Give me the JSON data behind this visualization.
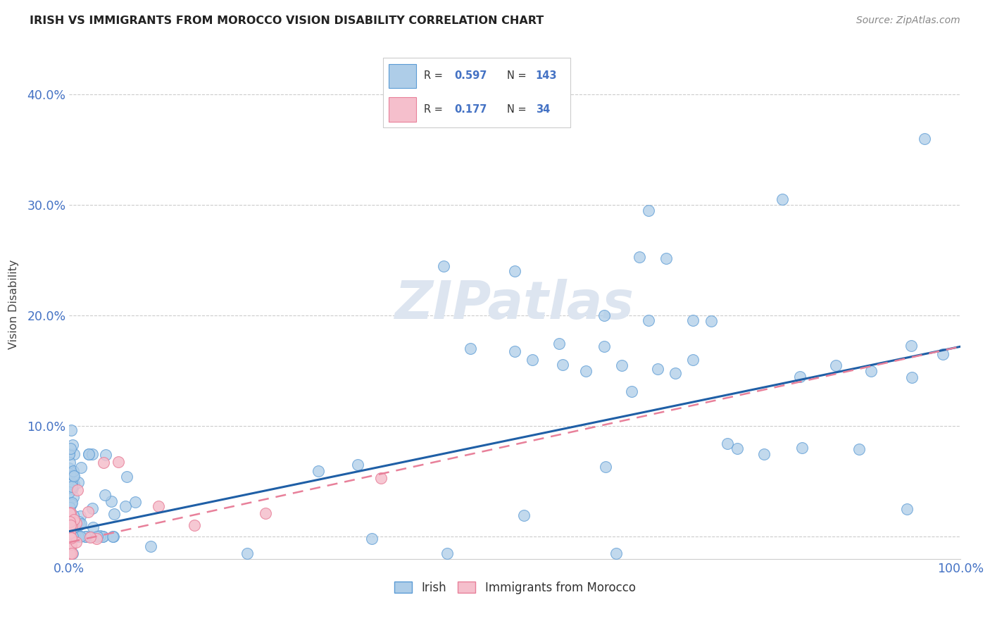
{
  "title": "IRISH VS IMMIGRANTS FROM MOROCCO VISION DISABILITY CORRELATION CHART",
  "source": "Source: ZipAtlas.com",
  "ylabel": "Vision Disability",
  "xlim": [
    0.0,
    1.0
  ],
  "ylim": [
    -0.02,
    0.44
  ],
  "irish_color": "#aecde8",
  "irish_edge_color": "#5b9bd5",
  "morocco_color": "#f5bfcc",
  "morocco_edge_color": "#e8809a",
  "irish_R": 0.597,
  "irish_N": 143,
  "morocco_R": 0.177,
  "morocco_N": 34,
  "irish_line_color": "#1f5fa6",
  "morocco_line_color": "#e8809a",
  "watermark": "ZIPatlas",
  "watermark_color": "#dde5f0",
  "legend_r_color": "#4472c4",
  "irish_line_y0": 0.005,
  "irish_line_y1": 0.172,
  "morocco_line_y0": -0.005,
  "morocco_line_y1": 0.172
}
